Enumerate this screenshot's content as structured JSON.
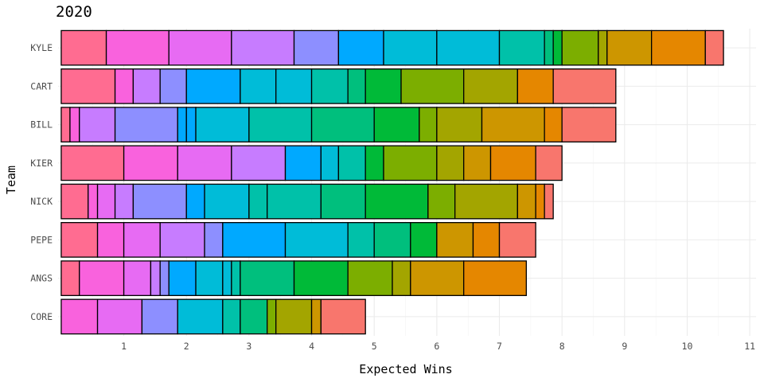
{
  "chart_data": {
    "type": "bar",
    "orientation": "horizontal",
    "stacked": true,
    "title": "2020",
    "xlabel": "Expected Wins",
    "ylabel": "Team",
    "xlim": [
      -0.05,
      11.1
    ],
    "xticks": [
      1,
      2,
      3,
      4,
      5,
      6,
      7,
      8,
      9,
      10,
      11
    ],
    "grid": true,
    "legend": "none",
    "categories": [
      "KYLE",
      "CART",
      "BILL",
      "KIER",
      "NICK",
      "PEPE",
      "ANGS",
      "CORE"
    ],
    "palette": [
      "#FF6C91",
      "#F962DD",
      "#E76BF3",
      "#C77CFF",
      "#8D8FFF",
      "#00A9FF",
      "#00BCD8",
      "#00C1A9",
      "#00BF7D",
      "#00BA38",
      "#7CAE00",
      "#A3A500",
      "#CD9600",
      "#E58700",
      "#F8766D"
    ],
    "bars": [
      {
        "team": "KYLE",
        "segments": [
          {
            "start": 0.0,
            "end": 0.72,
            "color": 0
          },
          {
            "start": 0.72,
            "end": 1.72,
            "color": 1
          },
          {
            "start": 1.72,
            "end": 2.72,
            "color": 2
          },
          {
            "start": 2.72,
            "end": 3.72,
            "color": 3
          },
          {
            "start": 3.72,
            "end": 4.43,
            "color": 4
          },
          {
            "start": 4.43,
            "end": 5.15,
            "color": 5
          },
          {
            "start": 5.15,
            "end": 6.0,
            "color": 6
          },
          {
            "start": 6.0,
            "end": 7.0,
            "color": 6
          },
          {
            "start": 7.0,
            "end": 7.72,
            "color": 7
          },
          {
            "start": 7.72,
            "end": 7.86,
            "color": 8
          },
          {
            "start": 7.86,
            "end": 8.0,
            "color": 9
          },
          {
            "start": 8.0,
            "end": 8.58,
            "color": 10
          },
          {
            "start": 8.58,
            "end": 8.72,
            "color": 11
          },
          {
            "start": 8.72,
            "end": 9.43,
            "color": 12
          },
          {
            "start": 9.43,
            "end": 10.29,
            "color": 13
          },
          {
            "start": 10.29,
            "end": 10.58,
            "color": 14
          }
        ]
      },
      {
        "team": "CART",
        "segments": [
          {
            "start": 0.0,
            "end": 0.86,
            "color": 0
          },
          {
            "start": 0.86,
            "end": 1.15,
            "color": 1
          },
          {
            "start": 1.15,
            "end": 1.58,
            "color": 3
          },
          {
            "start": 1.58,
            "end": 2.0,
            "color": 4
          },
          {
            "start": 2.0,
            "end": 2.86,
            "color": 5
          },
          {
            "start": 2.86,
            "end": 3.43,
            "color": 6
          },
          {
            "start": 3.43,
            "end": 4.0,
            "color": 6
          },
          {
            "start": 4.0,
            "end": 4.58,
            "color": 7
          },
          {
            "start": 4.58,
            "end": 4.86,
            "color": 8
          },
          {
            "start": 4.86,
            "end": 5.43,
            "color": 9
          },
          {
            "start": 5.43,
            "end": 6.43,
            "color": 10
          },
          {
            "start": 6.43,
            "end": 7.29,
            "color": 11
          },
          {
            "start": 7.29,
            "end": 7.86,
            "color": 13
          },
          {
            "start": 7.86,
            "end": 8.86,
            "color": 14
          }
        ]
      },
      {
        "team": "BILL",
        "segments": [
          {
            "start": 0.0,
            "end": 0.14,
            "color": 0
          },
          {
            "start": 0.14,
            "end": 0.29,
            "color": 1
          },
          {
            "start": 0.29,
            "end": 0.86,
            "color": 3
          },
          {
            "start": 0.86,
            "end": 1.86,
            "color": 4
          },
          {
            "start": 1.86,
            "end": 2.0,
            "color": 5
          },
          {
            "start": 2.0,
            "end": 2.15,
            "color": 5
          },
          {
            "start": 2.15,
            "end": 3.0,
            "color": 6
          },
          {
            "start": 3.0,
            "end": 4.0,
            "color": 7
          },
          {
            "start": 4.0,
            "end": 5.0,
            "color": 8
          },
          {
            "start": 5.0,
            "end": 5.72,
            "color": 9
          },
          {
            "start": 5.72,
            "end": 6.0,
            "color": 10
          },
          {
            "start": 6.0,
            "end": 6.72,
            "color": 11
          },
          {
            "start": 6.72,
            "end": 7.72,
            "color": 12
          },
          {
            "start": 7.72,
            "end": 8.0,
            "color": 13
          },
          {
            "start": 8.0,
            "end": 8.86,
            "color": 14
          }
        ]
      },
      {
        "team": "KIER",
        "segments": [
          {
            "start": 0.0,
            "end": 1.0,
            "color": 0
          },
          {
            "start": 1.0,
            "end": 1.86,
            "color": 1
          },
          {
            "start": 1.86,
            "end": 2.72,
            "color": 2
          },
          {
            "start": 2.72,
            "end": 3.58,
            "color": 3
          },
          {
            "start": 3.58,
            "end": 4.15,
            "color": 5
          },
          {
            "start": 4.15,
            "end": 4.43,
            "color": 6
          },
          {
            "start": 4.43,
            "end": 4.86,
            "color": 7
          },
          {
            "start": 4.86,
            "end": 5.15,
            "color": 9
          },
          {
            "start": 5.15,
            "end": 6.0,
            "color": 10
          },
          {
            "start": 6.0,
            "end": 6.43,
            "color": 11
          },
          {
            "start": 6.43,
            "end": 6.86,
            "color": 12
          },
          {
            "start": 6.86,
            "end": 7.58,
            "color": 13
          },
          {
            "start": 7.58,
            "end": 8.0,
            "color": 14
          }
        ]
      },
      {
        "team": "NICK",
        "segments": [
          {
            "start": 0.0,
            "end": 0.43,
            "color": 0
          },
          {
            "start": 0.43,
            "end": 0.58,
            "color": 1
          },
          {
            "start": 0.58,
            "end": 0.86,
            "color": 2
          },
          {
            "start": 0.86,
            "end": 1.15,
            "color": 3
          },
          {
            "start": 1.15,
            "end": 2.0,
            "color": 4
          },
          {
            "start": 2.0,
            "end": 2.29,
            "color": 5
          },
          {
            "start": 2.29,
            "end": 3.0,
            "color": 6
          },
          {
            "start": 3.0,
            "end": 3.29,
            "color": 7
          },
          {
            "start": 3.29,
            "end": 4.15,
            "color": 7
          },
          {
            "start": 4.15,
            "end": 4.86,
            "color": 8
          },
          {
            "start": 4.86,
            "end": 5.86,
            "color": 9
          },
          {
            "start": 5.86,
            "end": 6.29,
            "color": 10
          },
          {
            "start": 6.29,
            "end": 7.29,
            "color": 11
          },
          {
            "start": 7.29,
            "end": 7.58,
            "color": 12
          },
          {
            "start": 7.58,
            "end": 7.72,
            "color": 13
          },
          {
            "start": 7.72,
            "end": 7.86,
            "color": 14
          }
        ]
      },
      {
        "team": "PEPE",
        "segments": [
          {
            "start": 0.0,
            "end": 0.58,
            "color": 0
          },
          {
            "start": 0.58,
            "end": 1.0,
            "color": 1
          },
          {
            "start": 1.0,
            "end": 1.58,
            "color": 2
          },
          {
            "start": 1.58,
            "end": 2.29,
            "color": 3
          },
          {
            "start": 2.29,
            "end": 2.58,
            "color": 4
          },
          {
            "start": 2.58,
            "end": 3.58,
            "color": 5
          },
          {
            "start": 3.58,
            "end": 4.58,
            "color": 6
          },
          {
            "start": 4.58,
            "end": 5.0,
            "color": 7
          },
          {
            "start": 5.0,
            "end": 5.58,
            "color": 8
          },
          {
            "start": 5.58,
            "end": 6.0,
            "color": 9
          },
          {
            "start": 6.0,
            "end": 6.58,
            "color": 12
          },
          {
            "start": 6.58,
            "end": 7.0,
            "color": 13
          },
          {
            "start": 7.0,
            "end": 7.58,
            "color": 14
          }
        ]
      },
      {
        "team": "ANGS",
        "segments": [
          {
            "start": 0.0,
            "end": 0.29,
            "color": 0
          },
          {
            "start": 0.29,
            "end": 1.0,
            "color": 1
          },
          {
            "start": 1.0,
            "end": 1.43,
            "color": 2
          },
          {
            "start": 1.43,
            "end": 1.58,
            "color": 3
          },
          {
            "start": 1.58,
            "end": 1.72,
            "color": 4
          },
          {
            "start": 1.72,
            "end": 2.15,
            "color": 5
          },
          {
            "start": 2.15,
            "end": 2.58,
            "color": 6
          },
          {
            "start": 2.58,
            "end": 2.72,
            "color": 6
          },
          {
            "start": 2.72,
            "end": 2.86,
            "color": 7
          },
          {
            "start": 2.86,
            "end": 3.72,
            "color": 8
          },
          {
            "start": 3.72,
            "end": 4.58,
            "color": 9
          },
          {
            "start": 4.58,
            "end": 5.29,
            "color": 10
          },
          {
            "start": 5.29,
            "end": 5.58,
            "color": 11
          },
          {
            "start": 5.58,
            "end": 6.43,
            "color": 12
          },
          {
            "start": 6.43,
            "end": 7.43,
            "color": 13
          }
        ]
      },
      {
        "team": "CORE",
        "segments": [
          {
            "start": 0.0,
            "end": 0.58,
            "color": 1
          },
          {
            "start": 0.58,
            "end": 1.29,
            "color": 2
          },
          {
            "start": 1.29,
            "end": 1.86,
            "color": 4
          },
          {
            "start": 1.86,
            "end": 2.58,
            "color": 6
          },
          {
            "start": 2.58,
            "end": 2.86,
            "color": 7
          },
          {
            "start": 2.86,
            "end": 3.29,
            "color": 8
          },
          {
            "start": 3.29,
            "end": 3.43,
            "color": 10
          },
          {
            "start": 3.43,
            "end": 4.0,
            "color": 11
          },
          {
            "start": 4.0,
            "end": 4.15,
            "color": 12
          },
          {
            "start": 4.15,
            "end": 4.86,
            "color": 14
          }
        ]
      }
    ]
  }
}
